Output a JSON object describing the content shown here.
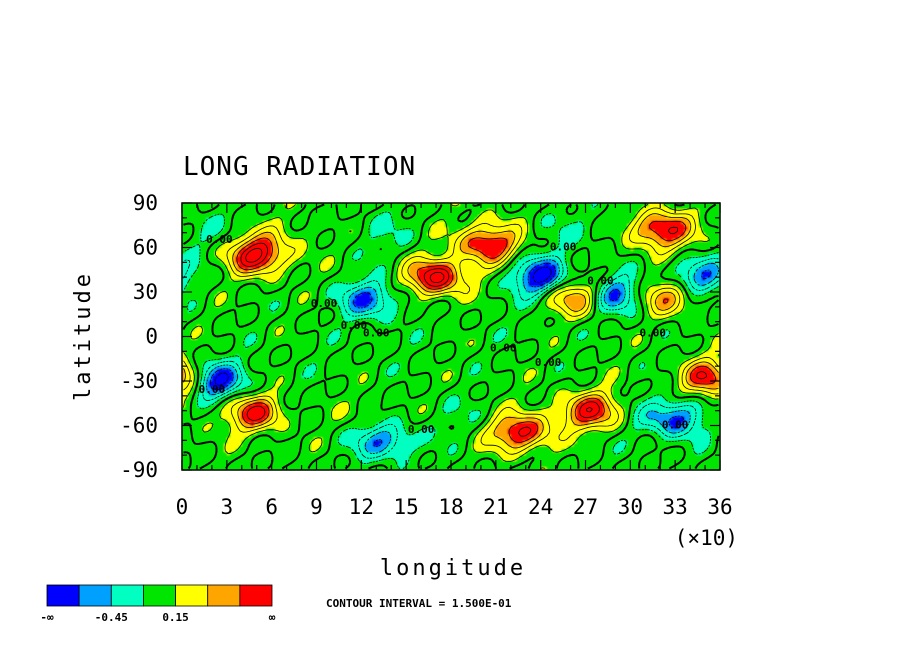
{
  "chart_data": {
    "type": "heatmap",
    "title": "LONG RADIATION",
    "xlabel": "longitude",
    "ylabel": "latitude",
    "x_tick_labels": [
      "0",
      "3",
      "6",
      "9",
      "12",
      "15",
      "18",
      "21",
      "24",
      "27",
      "30",
      "33",
      "36"
    ],
    "x_multiplier": "(×10)",
    "y_tick_labels": [
      "90",
      "60",
      "30",
      "0",
      "-30",
      "-60",
      "-90"
    ],
    "xlim": [
      0,
      360
    ],
    "ylim": [
      -90,
      90
    ],
    "contour_interval_text": "CONTOUR INTERVAL = 1.500E-01",
    "contour_label": "0.00",
    "colorbar": {
      "colors": [
        "#0000ff",
        "#00a0ff",
        "#00ffc0",
        "#00e600",
        "#ffff00",
        "#ffa500",
        "#ff0000"
      ],
      "labels": [
        "-∞",
        "-0.45",
        "0.15",
        "∞"
      ],
      "level_ranges": [
        [
          "-inf",
          -0.6
        ],
        [
          -0.6,
          -0.45
        ],
        [
          -0.45,
          -0.15
        ],
        [
          -0.15,
          0.15
        ],
        [
          0.15,
          0.45
        ],
        [
          0.45,
          0.6
        ],
        [
          0.6,
          "inf"
        ]
      ]
    },
    "features": [
      {
        "lon": 50,
        "lat": 55,
        "value": 0.9
      },
      {
        "lon": 170,
        "lat": 40,
        "value": 0.9
      },
      {
        "lon": 205,
        "lat": 62,
        "value": 0.7
      },
      {
        "lon": 240,
        "lat": 40,
        "value": -0.8
      },
      {
        "lon": 265,
        "lat": 27,
        "value": 0.7
      },
      {
        "lon": 290,
        "lat": 28,
        "value": -0.7
      },
      {
        "lon": 325,
        "lat": 27,
        "value": 0.6
      },
      {
        "lon": 320,
        "lat": 72,
        "value": 0.7
      },
      {
        "lon": 22,
        "lat": -30,
        "value": -0.8
      },
      {
        "lon": 50,
        "lat": -52,
        "value": 0.8
      },
      {
        "lon": 225,
        "lat": -65,
        "value": 0.8
      },
      {
        "lon": 275,
        "lat": -50,
        "value": 0.7
      },
      {
        "lon": 355,
        "lat": -28,
        "value": 0.8
      },
      {
        "lon": 330,
        "lat": -55,
        "value": -0.6
      },
      {
        "lon": 135,
        "lat": -70,
        "value": -0.6
      },
      {
        "lon": 125,
        "lat": 25,
        "value": -0.6
      },
      {
        "lon": 345,
        "lat": 40,
        "value": -0.6
      }
    ]
  }
}
